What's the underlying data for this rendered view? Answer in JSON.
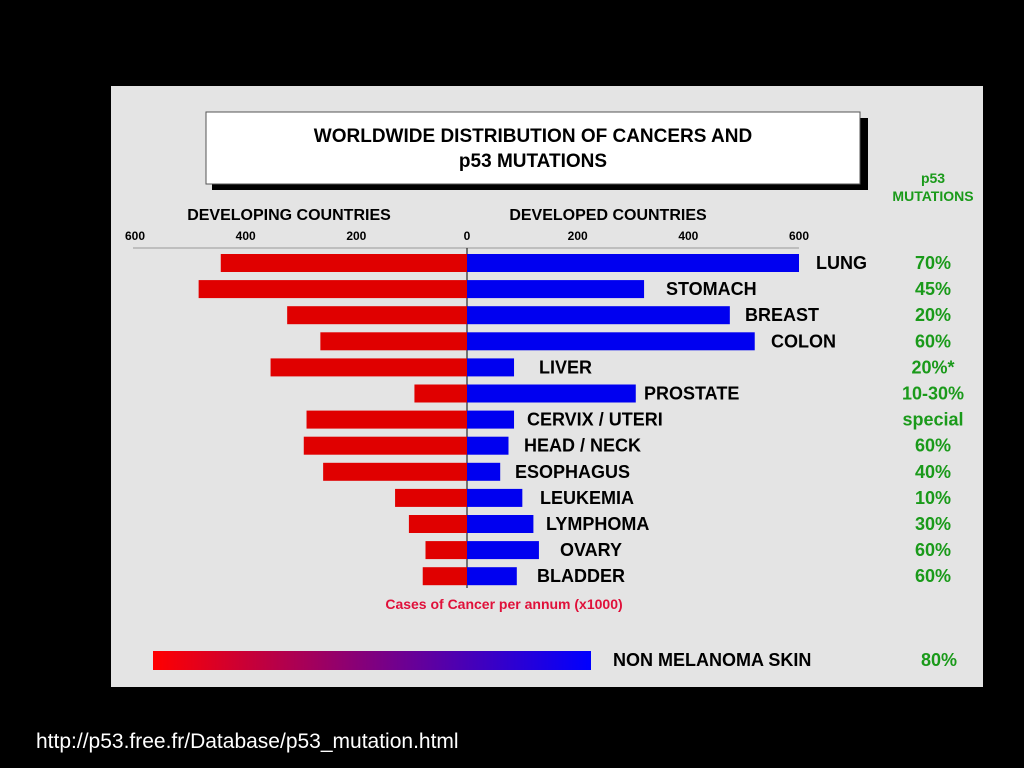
{
  "footer": {
    "url": "http://p53.free.fr/Database/p53_mutation.html"
  },
  "chart_data": {
    "type": "bar",
    "title_lines": [
      "WORLDWIDE DISTRIBUTION OF CANCERS AND",
      "p53 MUTATIONS"
    ],
    "left_header": "DEVELOPING COUNTRIES",
    "right_header": "DEVELOPED COUNTRIES",
    "mutation_header_lines": [
      "p53",
      "MUTATIONS"
    ],
    "xlabel": "Cases of Cancer per annum (x1000)",
    "xlim": [
      0,
      600
    ],
    "ticks_left": [
      "600",
      "400",
      "200",
      "0"
    ],
    "ticks_right": [
      "200",
      "400",
      "600"
    ],
    "categories": [
      "LUNG",
      "STOMACH",
      "BREAST",
      "COLON",
      "LIVER",
      "PROSTATE",
      "CERVIX / UTERI",
      "HEAD  / NECK",
      "ESOPHAGUS",
      "LEUKEMIA",
      "LYMPHOMA",
      "OVARY",
      "BLADDER"
    ],
    "series": [
      {
        "name": "DEVELOPING COUNTRIES",
        "color": "#e00000",
        "values": [
          445,
          485,
          325,
          265,
          355,
          95,
          290,
          295,
          260,
          130,
          105,
          75,
          80
        ]
      },
      {
        "name": "DEVELOPED COUNTRIES",
        "color": "#0000f0",
        "values": [
          600,
          320,
          475,
          520,
          85,
          305,
          85,
          75,
          60,
          100,
          120,
          130,
          90
        ]
      }
    ],
    "p53_mutations": [
      "70%",
      "45%",
      "20%",
      "60%",
      "20%*",
      "10-30%",
      "special",
      "60%",
      "40%",
      "10%",
      "30%",
      "60%",
      "60%"
    ],
    "extra": {
      "label": "NON MELANOMA SKIN",
      "mutation": "80%",
      "gradient": [
        "#ff0000",
        "#0000ff"
      ]
    },
    "colors": {
      "label_green": "#1a9a1a",
      "axis_label_red": "#e0103a",
      "panel_bg": "#e4e4e4"
    }
  }
}
